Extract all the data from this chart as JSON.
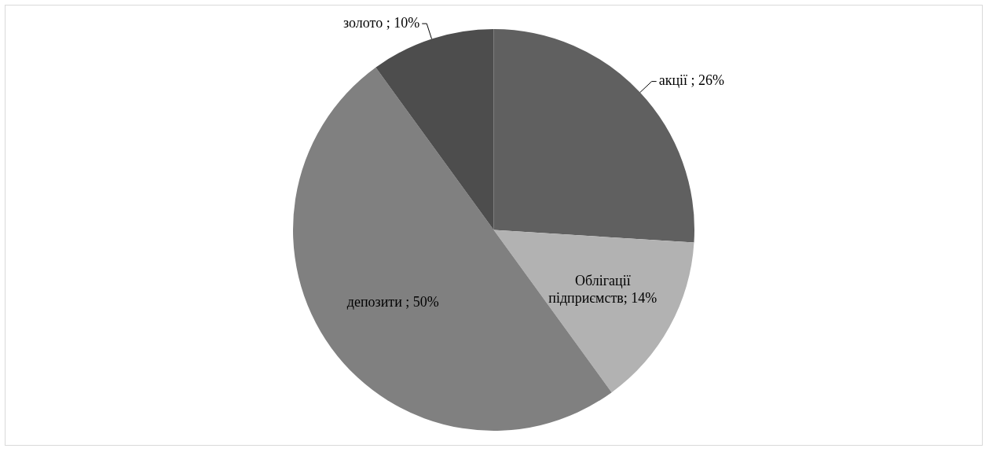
{
  "chart_data": {
    "type": "pie",
    "categories": [
      "акції ",
      "Облігації підприємств",
      "депозити ",
      "золото "
    ],
    "values": [
      26,
      14,
      50,
      10
    ],
    "colors": [
      "#606060",
      "#b2b2b2",
      "#808080",
      "#4d4d4d"
    ],
    "value_labels": [
      "26%",
      "14%",
      "50%",
      "10%"
    ],
    "legend": false
  }
}
